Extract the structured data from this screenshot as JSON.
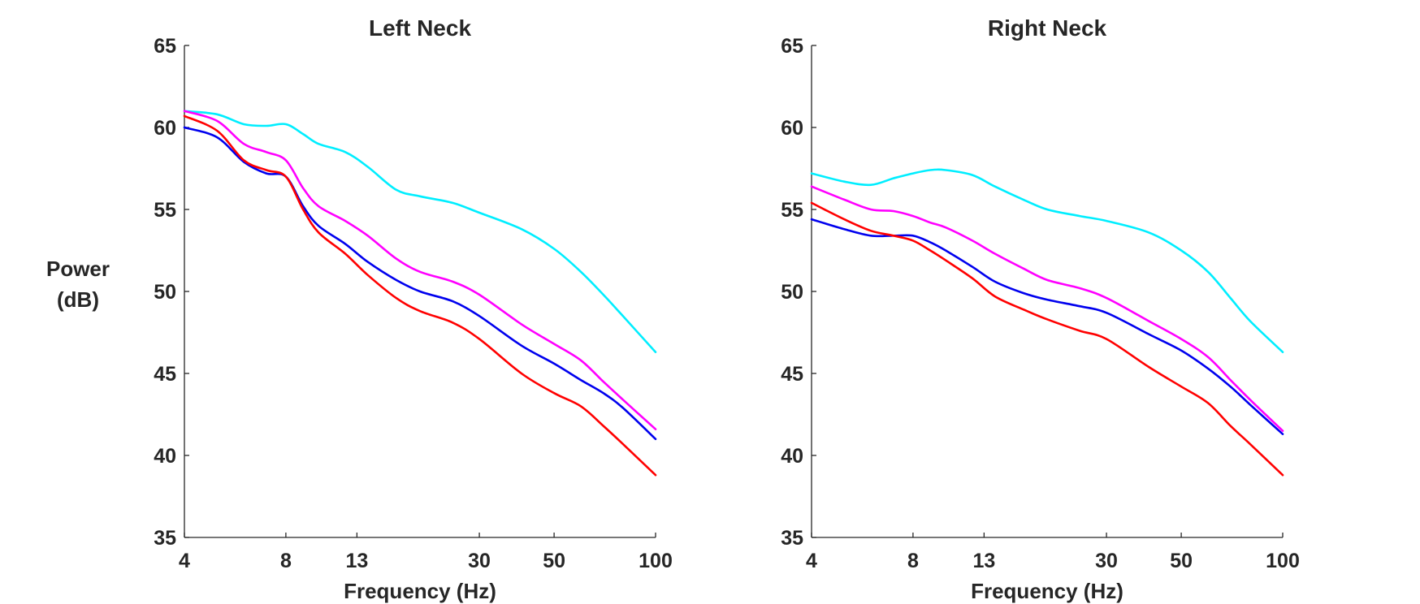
{
  "figure": {
    "ylabel_lines": [
      "Power",
      "(dB)"
    ]
  },
  "colors": {
    "cyan": "#00eeff",
    "magenta": "#ff00ff",
    "blue": "#0000ee",
    "red": "#ff0000",
    "axis": "#262626"
  },
  "chart_data": [
    {
      "type": "line",
      "title": "Left Neck",
      "xlabel": "Frequency (Hz)",
      "ylabel": "Power (dB)",
      "xscale": "log",
      "xlim": [
        4,
        100
      ],
      "ylim": [
        35,
        65
      ],
      "xticks": [
        4,
        8,
        13,
        30,
        50,
        100
      ],
      "yticks": [
        35,
        40,
        45,
        50,
        55,
        60,
        65
      ],
      "grid": false,
      "series": [
        {
          "color": "cyan",
          "x": [
            4,
            5,
            6,
            7,
            8,
            9,
            10,
            12,
            14,
            17,
            20,
            25,
            30,
            40,
            50,
            60,
            70,
            80,
            100
          ],
          "y": [
            61.0,
            60.8,
            60.2,
            60.1,
            60.2,
            59.6,
            59.0,
            58.5,
            57.6,
            56.2,
            55.8,
            55.4,
            54.8,
            53.8,
            52.6,
            51.2,
            49.8,
            48.5,
            46.3
          ]
        },
        {
          "color": "magenta",
          "x": [
            4,
            5,
            6,
            7,
            8,
            9,
            10,
            12,
            14,
            17,
            20,
            25,
            30,
            40,
            50,
            60,
            70,
            80,
            100
          ],
          "y": [
            61.0,
            60.4,
            59.0,
            58.5,
            58.0,
            56.3,
            55.2,
            54.3,
            53.4,
            52.0,
            51.2,
            50.6,
            49.8,
            48.0,
            46.8,
            45.8,
            44.5,
            43.4,
            41.6
          ]
        },
        {
          "color": "blue",
          "x": [
            4,
            5,
            6,
            7,
            8,
            9,
            10,
            12,
            14,
            17,
            20,
            25,
            30,
            40,
            50,
            60,
            70,
            80,
            100
          ],
          "y": [
            60.0,
            59.4,
            57.9,
            57.2,
            57.0,
            55.2,
            54.0,
            52.9,
            51.8,
            50.7,
            50.0,
            49.4,
            48.5,
            46.7,
            45.6,
            44.6,
            43.8,
            42.9,
            41.0
          ]
        },
        {
          "color": "red",
          "x": [
            4,
            5,
            6,
            7,
            8,
            9,
            10,
            12,
            14,
            17,
            20,
            25,
            30,
            40,
            50,
            60,
            70,
            80,
            100
          ],
          "y": [
            60.7,
            59.8,
            58.0,
            57.4,
            57.0,
            55.0,
            53.6,
            52.3,
            51.0,
            49.6,
            48.8,
            48.1,
            47.1,
            45.0,
            43.8,
            43.0,
            41.8,
            40.7,
            38.8
          ]
        }
      ]
    },
    {
      "type": "line",
      "title": "Right Neck",
      "xlabel": "Frequency (Hz)",
      "ylabel": "Power (dB)",
      "xscale": "log",
      "xlim": [
        4,
        100
      ],
      "ylim": [
        35,
        65
      ],
      "xticks": [
        4,
        8,
        13,
        30,
        50,
        100
      ],
      "yticks": [
        35,
        40,
        45,
        50,
        55,
        60,
        65
      ],
      "grid": false,
      "series": [
        {
          "color": "cyan",
          "x": [
            4,
            5,
            6,
            7,
            8,
            9,
            10,
            12,
            14,
            17,
            20,
            25,
            30,
            40,
            50,
            60,
            70,
            80,
            100
          ],
          "y": [
            57.2,
            56.7,
            56.5,
            56.9,
            57.2,
            57.4,
            57.4,
            57.1,
            56.4,
            55.6,
            55.0,
            54.6,
            54.3,
            53.6,
            52.5,
            51.2,
            49.6,
            48.2,
            46.3
          ]
        },
        {
          "color": "magenta",
          "x": [
            4,
            5,
            6,
            7,
            8,
            9,
            10,
            12,
            14,
            17,
            20,
            25,
            30,
            40,
            50,
            60,
            70,
            80,
            100
          ],
          "y": [
            56.4,
            55.6,
            55.0,
            54.9,
            54.6,
            54.2,
            53.9,
            53.1,
            52.3,
            51.4,
            50.7,
            50.2,
            49.6,
            48.2,
            47.1,
            46.0,
            44.6,
            43.4,
            41.5
          ]
        },
        {
          "color": "blue",
          "x": [
            4,
            5,
            6,
            7,
            8,
            9,
            10,
            12,
            14,
            17,
            20,
            25,
            30,
            40,
            50,
            60,
            70,
            80,
            100
          ],
          "y": [
            54.4,
            53.8,
            53.4,
            53.4,
            53.4,
            53.0,
            52.5,
            51.5,
            50.6,
            49.9,
            49.5,
            49.1,
            48.7,
            47.4,
            46.4,
            45.3,
            44.2,
            43.1,
            41.3
          ]
        },
        {
          "color": "red",
          "x": [
            4,
            5,
            6,
            7,
            8,
            9,
            10,
            12,
            14,
            17,
            20,
            25,
            30,
            40,
            50,
            60,
            70,
            80,
            100
          ],
          "y": [
            55.4,
            54.4,
            53.7,
            53.4,
            53.1,
            52.5,
            51.9,
            50.8,
            49.7,
            48.9,
            48.3,
            47.6,
            47.1,
            45.4,
            44.2,
            43.2,
            41.8,
            40.7,
            38.8
          ]
        }
      ]
    }
  ]
}
